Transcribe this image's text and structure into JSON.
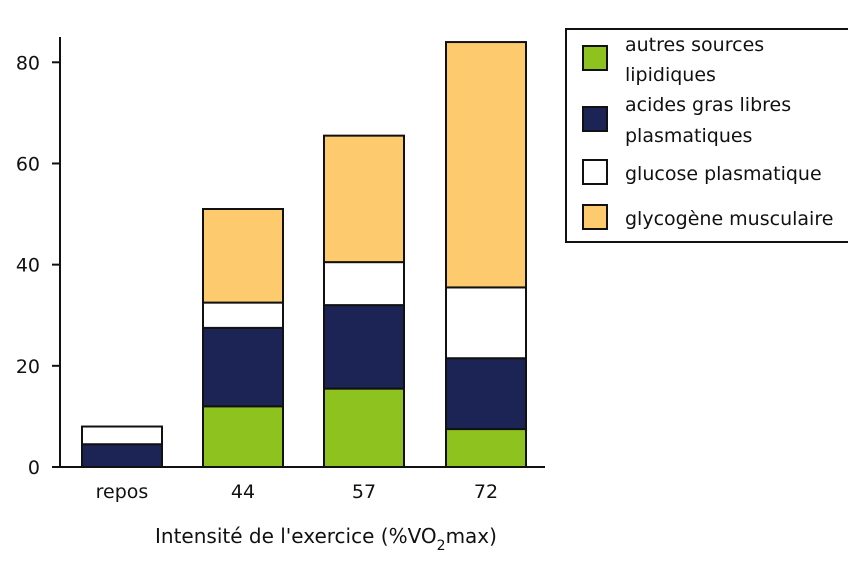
{
  "chart_data": {
    "type": "bar",
    "stacked": true,
    "categories": [
      "repos",
      "44",
      "57",
      "72"
    ],
    "series": [
      {
        "key": "autres_sources_lipidiques",
        "name_lines": [
          "autres sources",
          "lipidiques"
        ],
        "color": "#8DC21F",
        "values": [
          0,
          12,
          15.5,
          7.5
        ]
      },
      {
        "key": "acides_gras_libres_plasmatiques",
        "name_lines": [
          "acides gras libres",
          "plasmatiques"
        ],
        "color": "#1C2456",
        "values": [
          4.5,
          15.5,
          16.5,
          14
        ]
      },
      {
        "key": "glucose_plasmatique",
        "name_lines": [
          "glucose plasmatique"
        ],
        "color": "#FFFFFF",
        "values": [
          3.5,
          5,
          8.5,
          14
        ]
      },
      {
        "key": "glycogene_musculaire",
        "name_lines": [
          "glycogène musculaire"
        ],
        "color": "#FDCB6E",
        "values": [
          0,
          18.5,
          25,
          48.5
        ]
      }
    ],
    "xlabel": {
      "pre": "Intensité de l'exercice (%VO",
      "sub": "2",
      "post": "max)"
    },
    "ylabel": "",
    "ylim": [
      0,
      85
    ],
    "yticks": [
      0,
      20,
      40,
      60,
      80
    ],
    "grid": false,
    "legend_placement": "top-right"
  }
}
